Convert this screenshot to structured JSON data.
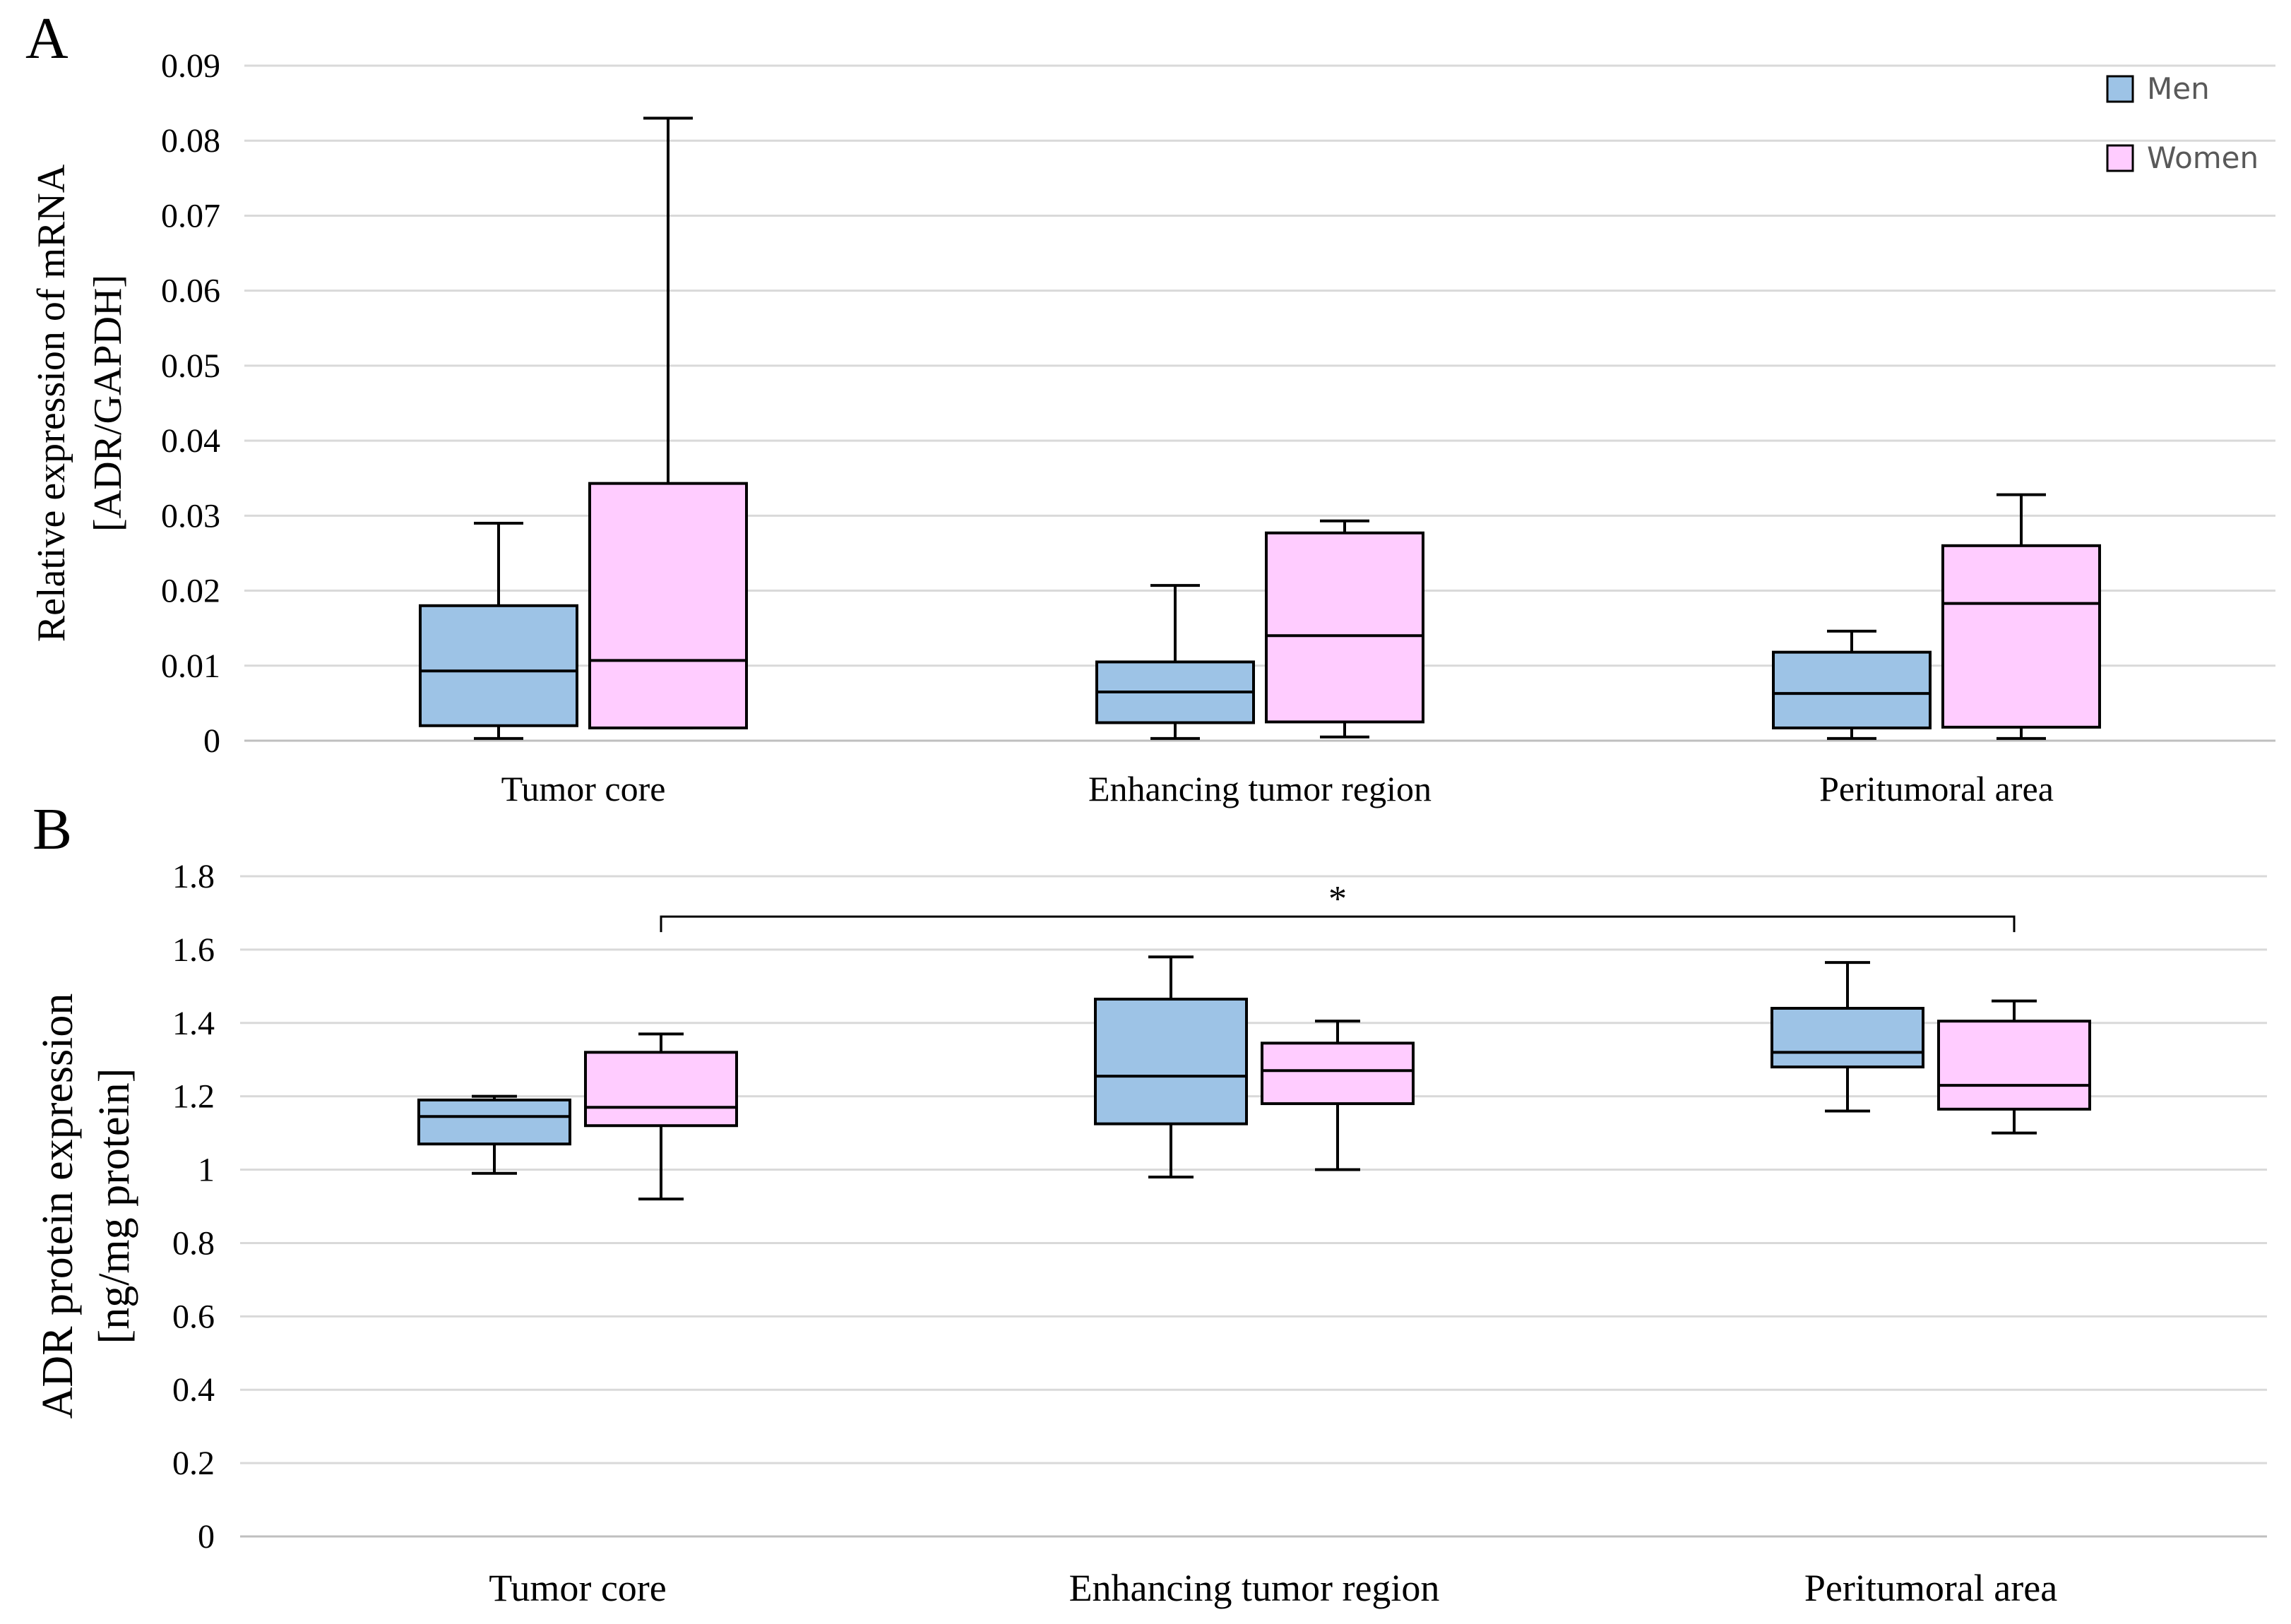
{
  "colors": {
    "men": "#9dc3e6",
    "women": "#ffccff",
    "stroke": "#000000",
    "grid": "#d9d9d9",
    "axis": "#bfbfbf",
    "legend_text": "#595959"
  },
  "legend": [
    {
      "name": "Men",
      "color": "#9dc3e6"
    },
    {
      "name": "Women",
      "color": "#ffccff"
    }
  ],
  "chart_data": [
    {
      "panel_label": "A",
      "type": "box",
      "ylabel_line1": "Relative expression of mRNA",
      "ylabel_line2": "[ADR/GAPDH]",
      "ylim": [
        0,
        0.09
      ],
      "yticks": [
        0,
        0.01,
        0.02,
        0.03,
        0.04,
        0.05,
        0.06,
        0.07,
        0.08,
        0.09
      ],
      "ytick_labels": [
        "0",
        "0.01",
        "0.02",
        "0.03",
        "0.04",
        "0.05",
        "0.06",
        "0.07",
        "0.08",
        "0.09"
      ],
      "categories": [
        "Tumor core",
        "Enhancing tumor region",
        "Peritumoral area"
      ],
      "series": [
        {
          "name": "Men",
          "boxes": [
            {
              "min": 0.0003,
              "q1": 0.002,
              "median": 0.0093,
              "q3": 0.018,
              "max": 0.029
            },
            {
              "min": 0.0003,
              "q1": 0.0024,
              "median": 0.0065,
              "q3": 0.0105,
              "max": 0.0207
            },
            {
              "min": 0.0003,
              "q1": 0.0017,
              "median": 0.0063,
              "q3": 0.0118,
              "max": 0.0146
            }
          ]
        },
        {
          "name": "Women",
          "boxes": [
            {
              "min": 0.0017,
              "q1": 0.0017,
              "median": 0.0107,
              "q3": 0.0343,
              "max": 0.083
            },
            {
              "min": 0.0005,
              "q1": 0.0025,
              "median": 0.014,
              "q3": 0.0277,
              "max": 0.0293
            },
            {
              "min": 0.0003,
              "q1": 0.0018,
              "median": 0.0183,
              "q3": 0.026,
              "max": 0.0328
            }
          ]
        }
      ],
      "show_legend": true,
      "legend_position": "top-right"
    },
    {
      "panel_label": "B",
      "type": "box",
      "ylabel_line1": "ADR protein expression",
      "ylabel_line2": "[ng/mg protein]",
      "ylim": [
        0,
        1.8
      ],
      "yticks": [
        0,
        0.2,
        0.4,
        0.6,
        0.8,
        1,
        1.2,
        1.4,
        1.6,
        1.8
      ],
      "ytick_labels": [
        "0",
        "0.2",
        "0.4",
        "0.6",
        "0.8",
        "1",
        "1.2",
        "1.4",
        "1.6",
        "1.8"
      ],
      "categories": [
        "Tumor core",
        "Enhancing tumor region",
        "Peritumoral area"
      ],
      "series": [
        {
          "name": "Men",
          "boxes": [
            {
              "min": 0.99,
              "q1": 1.07,
              "median": 1.145,
              "q3": 1.19,
              "max": 1.2
            },
            {
              "min": 0.98,
              "q1": 1.125,
              "median": 1.255,
              "q3": 1.465,
              "max": 1.58
            },
            {
              "min": 1.16,
              "q1": 1.28,
              "median": 1.32,
              "q3": 1.44,
              "max": 1.565
            }
          ]
        },
        {
          "name": "Women",
          "boxes": [
            {
              "min": 0.92,
              "q1": 1.12,
              "median": 1.17,
              "q3": 1.32,
              "max": 1.37
            },
            {
              "min": 1.0,
              "q1": 1.18,
              "median": 1.27,
              "q3": 1.345,
              "max": 1.405
            },
            {
              "min": 1.1,
              "q1": 1.165,
              "median": 1.23,
              "q3": 1.405,
              "max": 1.46
            }
          ]
        }
      ],
      "significance": {
        "label": "*",
        "from": "Tumor core",
        "to": "Peritumoral area",
        "level": 1.69
      },
      "show_legend": false
    }
  ]
}
